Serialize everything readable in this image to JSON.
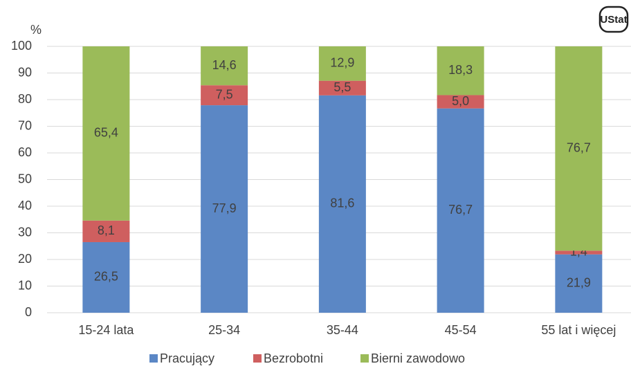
{
  "chart_data": {
    "type": "stacked_bar",
    "logo": "UStat",
    "y_axis_label": "%",
    "categories": [
      "15-24 lata",
      "25-34",
      "35-44",
      "45-54",
      "55 lat i więcej"
    ],
    "series": [
      {
        "name": "Pracujący",
        "color": "#5b87c5",
        "values": [
          26.5,
          77.9,
          81.6,
          76.7,
          21.9
        ],
        "value_labels": [
          "26,5",
          "77,9",
          "81,6",
          "76,7",
          "21,9"
        ]
      },
      {
        "name": "Bezrobotni",
        "color": "#cf5f5f",
        "values": [
          8.1,
          7.5,
          5.5,
          5.0,
          1.4
        ],
        "value_labels": [
          "8,1",
          "7,5",
          "5,5",
          "5,0",
          "1,4"
        ]
      },
      {
        "name": "Bierni zawodowo",
        "color": "#9bbb59",
        "values": [
          65.4,
          14.6,
          12.9,
          18.3,
          76.7
        ],
        "value_labels": [
          "65,4",
          "14,6",
          "12,9",
          "18,3",
          "76,7"
        ]
      }
    ],
    "ylim": [
      0,
      100
    ],
    "yticks": [
      0,
      10,
      20,
      30,
      40,
      50,
      60,
      70,
      80,
      90,
      100
    ],
    "grid": true,
    "legend": "bottom"
  }
}
